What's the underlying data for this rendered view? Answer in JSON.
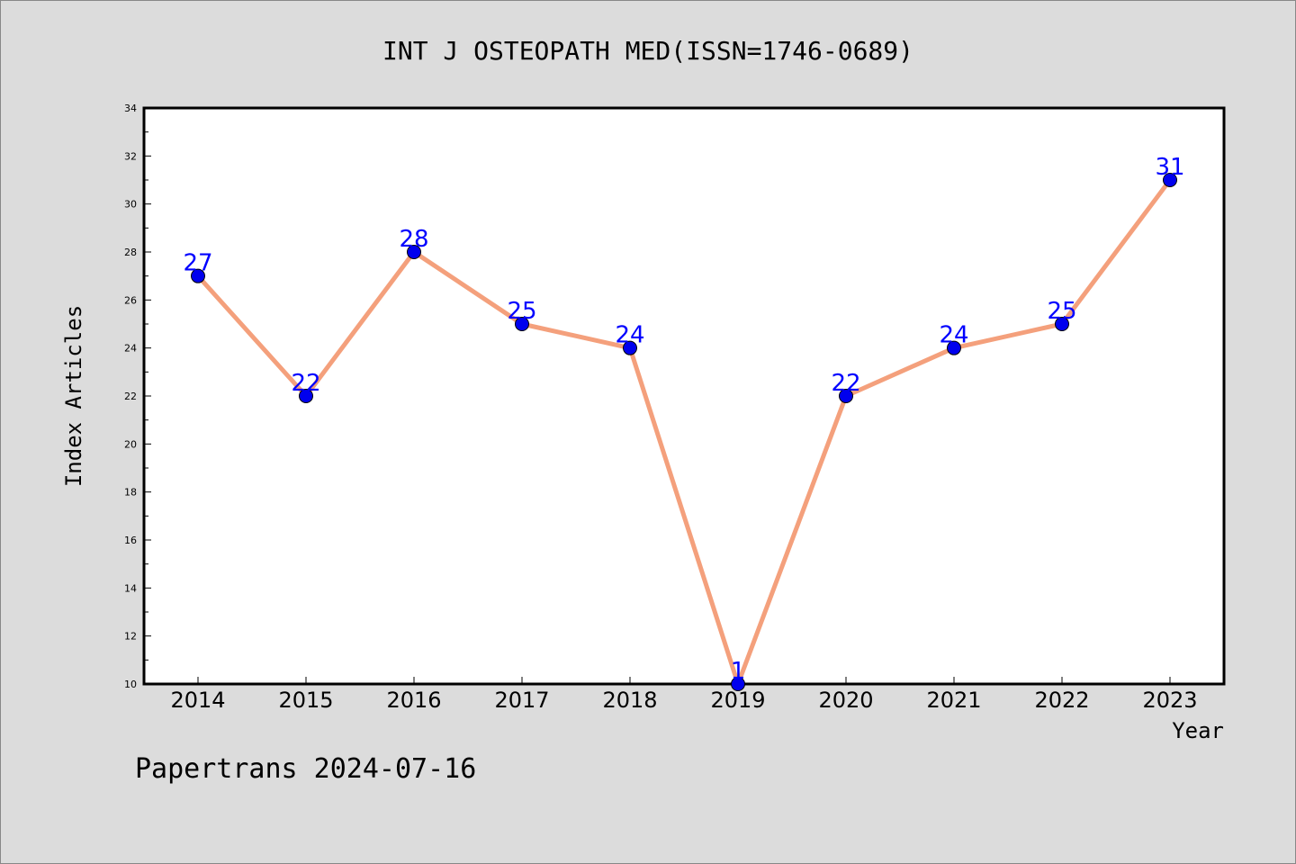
{
  "colors": {
    "background": "#dcdcdc",
    "plot_background": "#ffffff",
    "line": "#f4a07c",
    "marker": "#0000ee",
    "data_label": "#0000ff",
    "axis": "#000000"
  },
  "chart_data": {
    "type": "line",
    "title": "INT J OSTEOPATH MED(ISSN=1746-0689)",
    "xlabel": "Year",
    "ylabel": "Index Articles",
    "categories": [
      "2014",
      "2015",
      "2016",
      "2017",
      "2018",
      "2019",
      "2020",
      "2021",
      "2022",
      "2023"
    ],
    "series": [
      {
        "values": [
          27,
          22,
          28,
          25,
          24,
          1,
          22,
          24,
          25,
          31
        ]
      }
    ],
    "ylim": [
      10,
      34
    ],
    "yticks": [
      "10",
      "12",
      "14",
      "16",
      "18",
      "20",
      "22",
      "24",
      "26",
      "28",
      "30",
      "32",
      "34"
    ],
    "grid": false,
    "footer": "Papertrans 2024-07-16"
  }
}
